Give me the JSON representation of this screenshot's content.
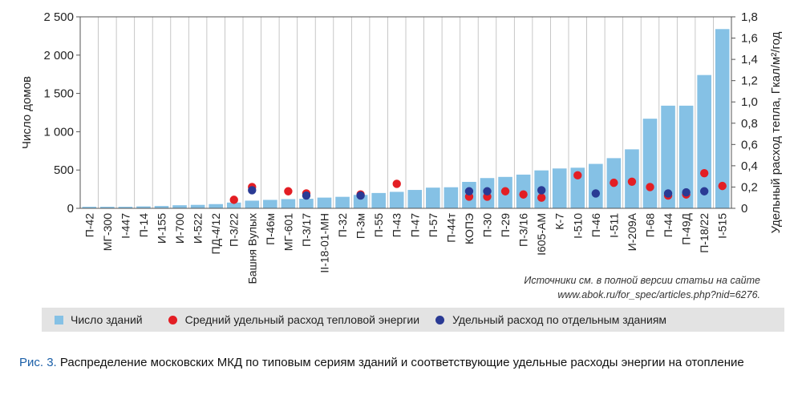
{
  "chart_data": {
    "type": "bar",
    "categories": [
      "П-42",
      "МГ-300",
      "I-447",
      "П-14",
      "И-155",
      "И-700",
      "И-522",
      "ПД-4/12",
      "П-3/22",
      "Башня Вулых",
      "П-46м",
      "МГ-601",
      "П-3/17",
      "II-18-01-МН",
      "П-32",
      "П-3м",
      "П-55",
      "П-43",
      "П-47",
      "П-57",
      "П-44т",
      "КОПЭ",
      "П-30",
      "П-29",
      "П-3/16",
      "I605-АМ",
      "К-7",
      "I-510",
      "П-46",
      "I-511",
      "И-209А",
      "П-68",
      "П-44",
      "П-49Д",
      "П-18/22",
      "I-515"
    ],
    "series": [
      {
        "name": "Число зданий",
        "kind": "bar",
        "axis": "left",
        "values": [
          20,
          20,
          20,
          25,
          30,
          40,
          45,
          55,
          75,
          100,
          110,
          120,
          125,
          140,
          150,
          175,
          200,
          215,
          240,
          270,
          275,
          345,
          395,
          410,
          440,
          495,
          520,
          530,
          580,
          655,
          770,
          1170,
          1340,
          1340,
          1740,
          2340
        ]
      },
      {
        "name": "Средний удельный расход тепловой энергии",
        "kind": "dot",
        "axis": "right",
        "values": [
          null,
          null,
          null,
          null,
          null,
          null,
          null,
          null,
          0.08,
          0.2,
          null,
          0.16,
          0.14,
          null,
          null,
          0.13,
          null,
          0.23,
          null,
          null,
          null,
          0.11,
          0.11,
          0.16,
          0.13,
          0.1,
          null,
          0.31,
          null,
          0.24,
          0.25,
          0.2,
          0.12,
          0.13,
          0.33,
          0.21
        ]
      },
      {
        "name": "Удельный расход по отдельным зданиям",
        "kind": "dot",
        "axis": "right",
        "values": [
          null,
          null,
          null,
          null,
          null,
          null,
          null,
          null,
          null,
          0.17,
          null,
          null,
          0.12,
          null,
          null,
          0.12,
          null,
          null,
          null,
          null,
          null,
          0.16,
          0.16,
          null,
          null,
          0.17,
          null,
          null,
          0.14,
          null,
          null,
          null,
          0.14,
          0.15,
          0.16,
          null
        ]
      }
    ],
    "ylabel": "Число домов",
    "ylim": [
      0,
      2500
    ],
    "yticks": [
      0,
      500,
      1000,
      1500,
      2000,
      2500
    ],
    "ytick_labels": [
      "0",
      "500",
      "1 000",
      "1 500",
      "2 000",
      "2 500"
    ],
    "y2label": "Удельный расход тепла, Гкал/м²/год",
    "y2lim": [
      0,
      1.8
    ],
    "y2ticks": [
      0,
      0.2,
      0.4,
      0.6,
      0.8,
      1.0,
      1.2,
      1.4,
      1.6,
      1.8
    ],
    "y2tick_labels": [
      "0",
      "0,2",
      "0,4",
      "0,6",
      "0,8",
      "1,0",
      "1,2",
      "1,4",
      "1,6",
      "1,8"
    ],
    "grid": "vertical",
    "legend_placement": "bottom"
  },
  "colors": {
    "bar": "#85c1e5",
    "avg_dot": "#e31e24",
    "individual_dot": "#2a3a94",
    "caption_accent": "#1a5fa8",
    "legend_bg": "#e3e3e3"
  },
  "source": {
    "line1": "Источники см. в полной версии статьи на сайте",
    "line2": "www.abok.ru/for_spec/articles.php?nid=6276."
  },
  "legend": {
    "bars": "Число зданий",
    "avg": "Средний удельный расход тепловой энергии",
    "individual": "Удельный расход по отдельным зданиям"
  },
  "caption": {
    "figure": "Рис. 3.",
    "text": "Распределение московских МКД по типовым сериям зданий и соответствующие удельные расходы энергии на отопление"
  }
}
